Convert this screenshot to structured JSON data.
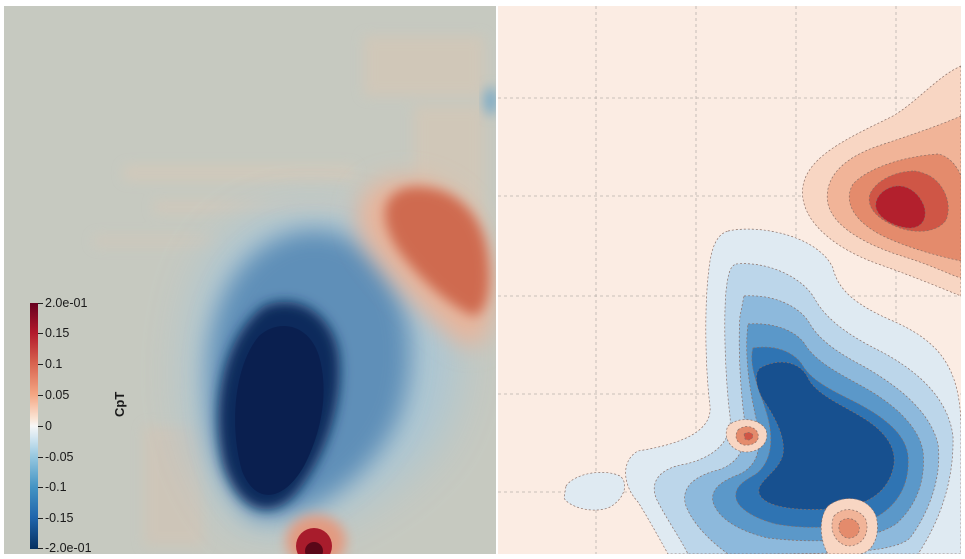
{
  "left_panel": {
    "colorbar": {
      "title": "CpT",
      "labels": [
        "2.0e-01",
        "0.15",
        "0.1",
        "0.05",
        "0",
        "-0.05",
        "-0.1",
        "-0.15",
        "-2.0e-01"
      ],
      "colors": [
        "#67001f",
        "#b2182b",
        "#d6604d",
        "#f4a582",
        "#f7f7f7",
        "#92c5de",
        "#4393c3",
        "#2166ac",
        "#053061"
      ]
    },
    "background_color": "#c6c9c0"
  },
  "right_panel": {
    "background_color": "#fbece3",
    "grid": "dashed",
    "contour_colors": {
      "neg_1": "#dfeaf2",
      "neg_2": "#bcd6ea",
      "neg_3": "#8db9dc",
      "neg_4": "#5b98c9",
      "neg_5": "#2f74b3",
      "neg_6": "#17508f",
      "pos_1": "#f8d6c3",
      "pos_2": "#f1b498",
      "pos_3": "#e48b6c",
      "pos_4": "#cf5646",
      "pos_5": "#b3202d"
    }
  }
}
